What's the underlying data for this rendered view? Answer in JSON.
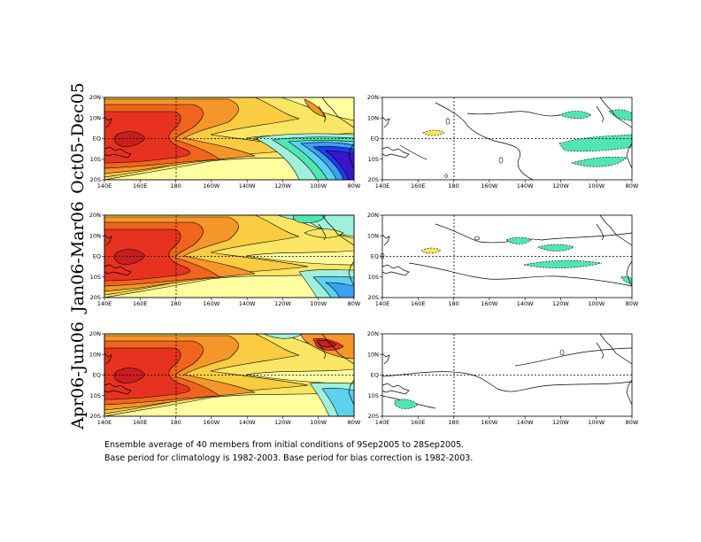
{
  "rows": [
    {
      "label": "Oct05-Dec05"
    },
    {
      "label": "Jan06-Mar06"
    },
    {
      "label": "Apr06-Jun06"
    }
  ],
  "lon_ticks": [
    "140E",
    "160E",
    "180",
    "160W",
    "140W",
    "120W",
    "100W",
    "80W"
  ],
  "lat_ticks": [
    "20N",
    "10N",
    "EQ",
    "10S",
    "20S"
  ],
  "contour_labels": {
    "zero": "0"
  },
  "colors": {
    "dark_red": "#c81e1e",
    "red": "#e83220",
    "orange_red": "#f0641e",
    "orange": "#f5962a",
    "light_orange": "#facc42",
    "yellow": "#fae664",
    "pale_yellow": "#ffffa0",
    "white": "#ffffff",
    "aqua": "#a0f0dc",
    "green_cyan": "#50e6b4",
    "cyan": "#5ad2f0",
    "light_blue": "#3ca0f0",
    "blue": "#1e3cf0",
    "deep_blue": "#3c14c8"
  },
  "caption": {
    "line1": "Ensemble average of 40 members from initial conditions of 9Sep2005 to 28Sep2005.",
    "line2": "Base period for climatology is 1982-2003. Base period for bias correction is 1982-2003."
  }
}
